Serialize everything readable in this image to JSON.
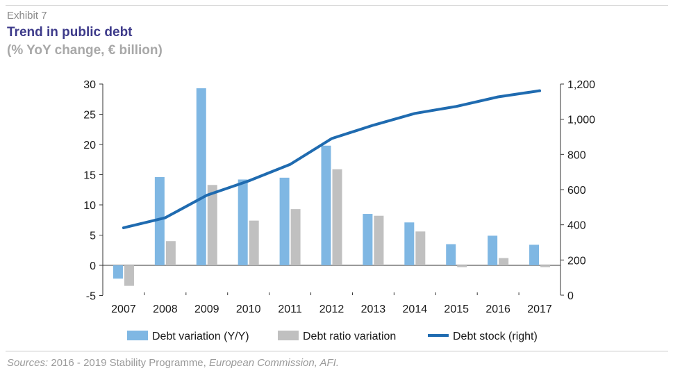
{
  "header": {
    "exhibit": "Exhibit 7",
    "title": "Trend in public debt",
    "subtitle": "(% YoY change, € billion)"
  },
  "footer": {
    "sources_prefix": "Sources:",
    "sources_middle": " 2016 - 2019 Stability Programme, ",
    "sources_suffix": "European Commission, AFI."
  },
  "chart_data": {
    "type": "bar",
    "title": "Trend in public debt",
    "subtitle": "(% YoY change, € billion)",
    "categories": [
      "2007",
      "2008",
      "2009",
      "2010",
      "2011",
      "2012",
      "2013",
      "2014",
      "2015",
      "2016",
      "2017"
    ],
    "series": [
      {
        "name": "Debt variation (Y/Y)",
        "type": "bar",
        "axis": "left",
        "color": "#7fb7e3",
        "values": [
          -2.2,
          14.6,
          29.3,
          14.2,
          14.5,
          19.8,
          8.5,
          7.1,
          3.5,
          4.9,
          3.4
        ]
      },
      {
        "name": "Debt ratio variation",
        "type": "bar",
        "axis": "left",
        "color": "#c0c0c0",
        "values": [
          -3.4,
          4.0,
          13.3,
          7.4,
          9.3,
          15.9,
          8.2,
          5.6,
          -0.3,
          1.2,
          -0.3
        ]
      },
      {
        "name": "Debt stock (right)",
        "type": "line",
        "axis": "right",
        "color": "#1f6bb0",
        "values": [
          383,
          440,
          568,
          649,
          743,
          890,
          966,
          1033,
          1073,
          1127,
          1162
        ]
      }
    ],
    "y_left": {
      "min": -5,
      "max": 30,
      "ticks": [
        "-5",
        "0",
        "5",
        "10",
        "15",
        "20",
        "25",
        "30"
      ]
    },
    "y_right": {
      "min": 0,
      "max": 1200,
      "ticks": [
        "0",
        "200",
        "400",
        "600",
        "800",
        "1,000",
        "1,200"
      ]
    },
    "grid": false,
    "legend_position": "bottom"
  }
}
